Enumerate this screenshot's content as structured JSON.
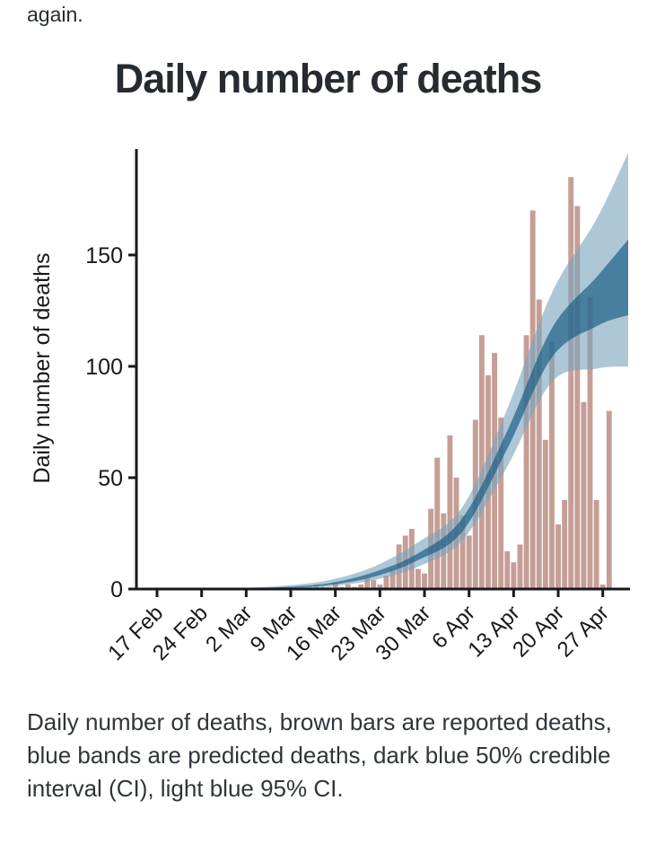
{
  "page": {
    "top_text": "again."
  },
  "figure": {
    "title": "Daily number of deaths",
    "caption": "Daily number of deaths, brown bars are reported deaths, blue bands are predicted deaths, dark blue 50% credible interval (CI), light blue 95% CI."
  },
  "chart_data": {
    "type": "bar",
    "title": "Daily number of deaths",
    "xlabel": "",
    "ylabel": "Daily number of deaths",
    "y_ticks": [
      0,
      50,
      100,
      150
    ],
    "ylim": [
      0,
      197
    ],
    "x_tick_labels": [
      "17 Feb",
      "24 Feb",
      "2 Mar",
      "9 Mar",
      "16 Mar",
      "23 Mar",
      "30 Mar",
      "6 Apr",
      "13 Apr",
      "20 Apr",
      "27 Apr"
    ],
    "bars": {
      "legend": "reported deaths (brown bars)",
      "start_offset_days": 23,
      "dates": [
        "11 Mar",
        "12 Mar",
        "13 Mar",
        "14 Mar",
        "15 Mar",
        "16 Mar",
        "17 Mar",
        "18 Mar",
        "19 Mar",
        "20 Mar",
        "21 Mar",
        "22 Mar",
        "23 Mar",
        "24 Mar",
        "25 Mar",
        "26 Mar",
        "27 Mar",
        "28 Mar",
        "29 Mar",
        "30 Mar",
        "31 Mar",
        "1 Apr",
        "2 Apr",
        "3 Apr",
        "4 Apr",
        "5 Apr",
        "6 Apr",
        "7 Apr",
        "8 Apr",
        "9 Apr",
        "10 Apr",
        "11 Apr",
        "12 Apr",
        "13 Apr",
        "14 Apr",
        "15 Apr",
        "16 Apr",
        "17 Apr",
        "18 Apr",
        "19 Apr",
        "20 Apr",
        "21 Apr",
        "22 Apr",
        "23 Apr",
        "24 Apr",
        "25 Apr",
        "26 Apr",
        "27 Apr",
        "28 Apr"
      ],
      "values": [
        1,
        1,
        2,
        1,
        1,
        3,
        1,
        2,
        1,
        2,
        5,
        4,
        2,
        6,
        9,
        20,
        24,
        27,
        9,
        7,
        36,
        59,
        34,
        69,
        50,
        33,
        24,
        76,
        114,
        96,
        106,
        77,
        17,
        12,
        20,
        114,
        170,
        130,
        67,
        111,
        29,
        40,
        185,
        172,
        84,
        131,
        40,
        2,
        80
      ]
    },
    "bands": {
      "legend_50": "predicted deaths, 50% credible interval (CI), dark blue",
      "legend_95": "predicted deaths, 95% CI, light blue",
      "anchor_offsets_days": [
        10,
        13,
        20,
        27,
        34,
        41,
        48,
        55,
        62,
        69,
        74
      ],
      "anchor_dates": [
        "27 Feb",
        "1 Mar",
        "8 Mar",
        "15 Mar",
        "22 Mar",
        "29 Mar",
        "5 Apr",
        "12 Apr",
        "19 Apr",
        "26 Apr",
        "1 May"
      ],
      "lower95": [
        0.02,
        0.05,
        0.3,
        1.2,
        4,
        10,
        22,
        55,
        93,
        99,
        100
      ],
      "lower50": [
        0.03,
        0.1,
        0.5,
        1.8,
        5.5,
        13,
        26,
        63,
        104,
        118,
        123
      ],
      "upper50": [
        0.05,
        0.2,
        0.9,
        2.6,
        7.5,
        16,
        32,
        71,
        117,
        140,
        157
      ],
      "upper95": [
        0.1,
        0.4,
        1.5,
        4,
        10,
        21,
        37,
        81,
        133,
        166,
        196
      ]
    },
    "colors": {
      "bar": "#c59e96",
      "band95": "rgba(122,164,189,0.62)",
      "band50": "rgba(20,90,130,0.66)",
      "axis": "#17191c",
      "tick_text": "#17191c",
      "title_text": "#262b32"
    }
  }
}
